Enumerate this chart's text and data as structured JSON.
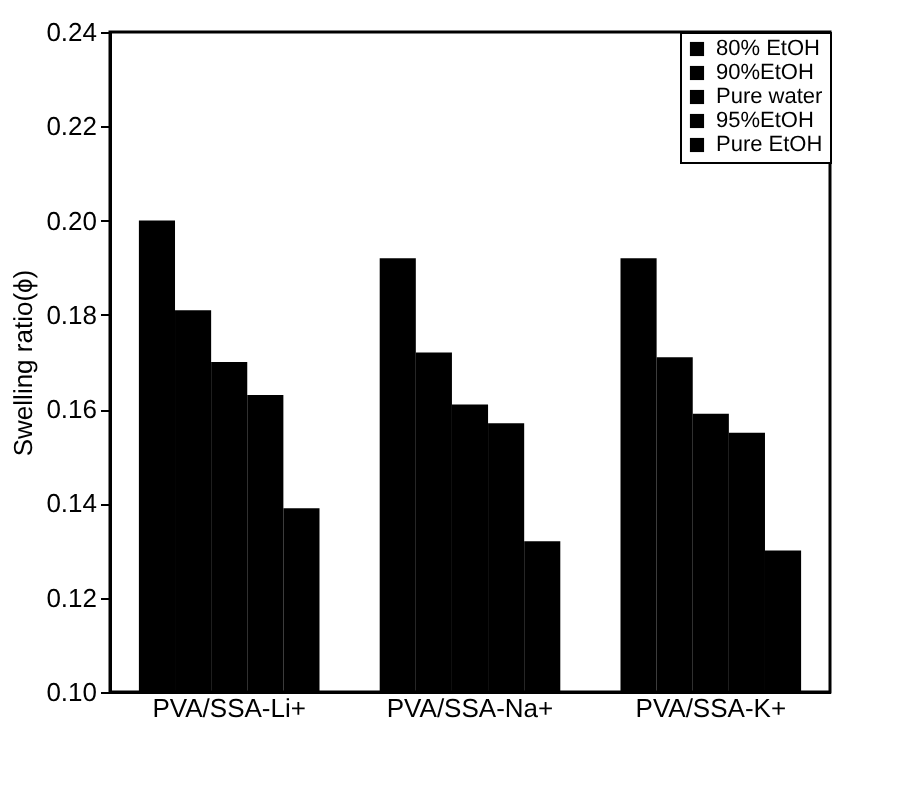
{
  "chart_data": {
    "type": "bar",
    "ylabel": "Swelling ratio(ϕ)",
    "categories": [
      "PVA/SSA-Li+",
      "PVA/SSA-Na+",
      "PVA/SSA-K+"
    ],
    "series": [
      {
        "name": "80% EtOH",
        "color": "#000000",
        "values": [
          0.2,
          0.192,
          0.192
        ]
      },
      {
        "name": "90%EtOH",
        "color": "#000000",
        "values": [
          0.181,
          0.172,
          0.171
        ]
      },
      {
        "name": "Pure water",
        "color": "#000000",
        "values": [
          0.17,
          0.161,
          0.159
        ]
      },
      {
        "name": "95%EtOH",
        "color": "#000000",
        "values": [
          0.163,
          0.157,
          0.155
        ]
      },
      {
        "name": "Pure EtOH",
        "color": "#000000",
        "values": [
          0.139,
          0.132,
          0.13
        ]
      }
    ],
    "ylim": [
      0.1,
      0.24
    ],
    "yticks": [
      {
        "value": 0.1,
        "label": "0.10"
      },
      {
        "value": 0.12,
        "label": "0.12"
      },
      {
        "value": 0.14,
        "label": "0.14"
      },
      {
        "value": 0.16,
        "label": "0.16"
      },
      {
        "value": 0.18,
        "label": "0.18"
      },
      {
        "value": 0.2,
        "label": "0.20"
      },
      {
        "value": 0.22,
        "label": "0.22"
      },
      {
        "value": 0.24,
        "label": "0.24"
      }
    ],
    "grid": false,
    "legend": "top right"
  }
}
